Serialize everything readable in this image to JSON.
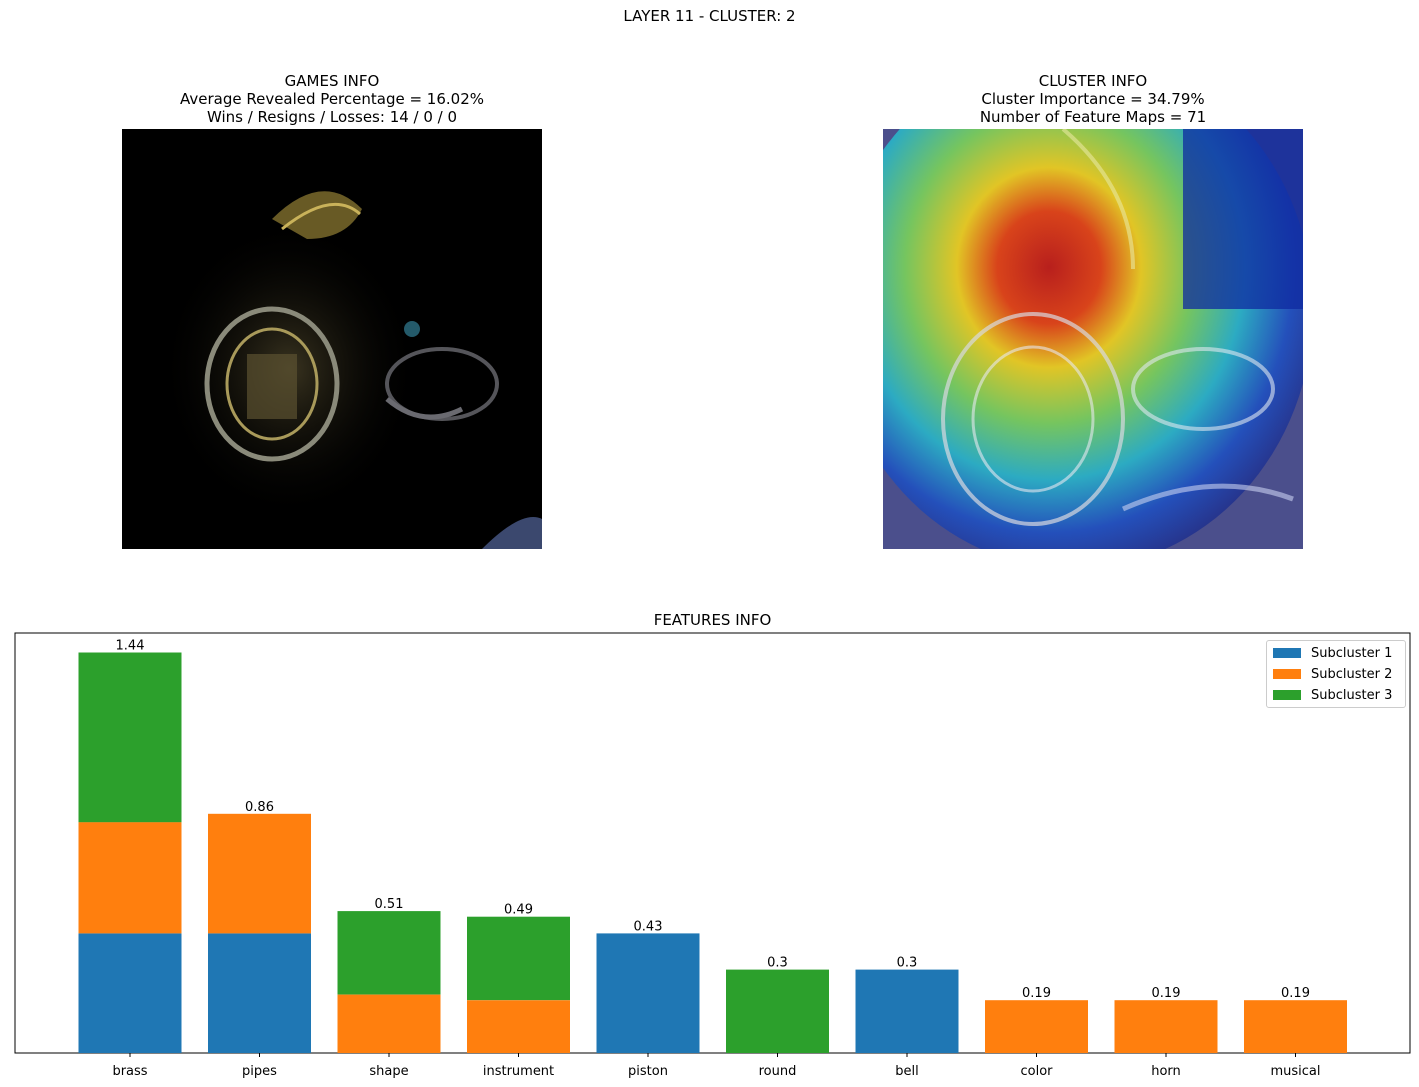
{
  "suptitle": "LAYER 11 - CLUSTER: 2",
  "games_info": {
    "title": "GAMES INFO",
    "line1": "Average Revealed Percentage = 16.02%",
    "line2": "Wins / Resigns / Losses: 14 / 0 / 0"
  },
  "cluster_info": {
    "title": "CLUSTER INFO",
    "line1": "Cluster Importance = 34.79%",
    "line2": "Number of Feature Maps = 71"
  },
  "colors": {
    "subcluster_1": "#1f77b4",
    "subcluster_2": "#ff7f0e",
    "subcluster_3": "#2ca02c"
  },
  "chart_data": {
    "type": "bar",
    "stacked": true,
    "title": "FEATURES INFO",
    "categories": [
      "brass",
      "pipes",
      "shape",
      "instrument",
      "piston",
      "round",
      "bell",
      "color",
      "horn",
      "musical"
    ],
    "series": [
      {
        "name": "Subcluster 1",
        "color": "#1f77b4",
        "values": [
          0.43,
          0.43,
          0,
          0,
          0.43,
          0,
          0.3,
          0,
          0,
          0
        ]
      },
      {
        "name": "Subcluster 2",
        "color": "#ff7f0e",
        "values": [
          0.4,
          0.43,
          0.21,
          0.19,
          0,
          0,
          0,
          0.19,
          0.19,
          0.19
        ]
      },
      {
        "name": "Subcluster 3",
        "color": "#2ca02c",
        "values": [
          0.61,
          0,
          0.3,
          0.3,
          0,
          0.3,
          0,
          0,
          0,
          0
        ]
      }
    ],
    "totals": [
      "1.44",
      "0.86",
      "0.51",
      "0.49",
      "0.43",
      "0.3",
      "0.3",
      "0.19",
      "0.19",
      "0.19"
    ],
    "ylim": [
      0,
      1.51
    ],
    "y_axis_visible": false,
    "legend_position": "top-right"
  }
}
